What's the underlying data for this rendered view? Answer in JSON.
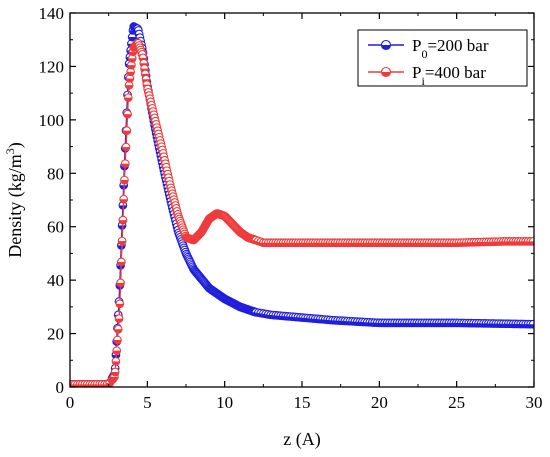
{
  "chart_data": {
    "type": "scatter",
    "xlabel": "z (A)",
    "ylabel": {
      "main": "Density (kg/m",
      "sup": "3",
      "end": ")"
    },
    "xlim": [
      0,
      30
    ],
    "ylim": [
      0,
      140
    ],
    "xticks": [
      0,
      5,
      10,
      15,
      20,
      25,
      30
    ],
    "yticks": [
      0,
      20,
      40,
      60,
      80,
      100,
      120,
      140
    ],
    "grid": false,
    "legend_position": "top-right",
    "series": [
      {
        "name": "P0=200 bar",
        "legend": {
          "prefix": "P",
          "sub": "0",
          "suffix": "=200 bar"
        },
        "color": "#1f1fdc",
        "marker": "half-filled-circle",
        "x": [
          0,
          2.5,
          2.9,
          3.2,
          3.5,
          3.8,
          4.1,
          4.4,
          4.7,
          5.0,
          5.5,
          6.0,
          6.5,
          7.0,
          7.5,
          8.0,
          9.0,
          10.0,
          11.0,
          12.0,
          13.0,
          15.0,
          17.0,
          20.0,
          25.0,
          30.0
        ],
        "y": [
          1,
          1,
          5,
          35,
          80,
          120,
          135,
          134,
          126,
          113,
          97,
          83,
          70,
          58,
          50,
          44,
          37,
          33,
          30,
          28,
          27,
          26,
          25,
          24,
          24,
          23.5
        ]
      },
      {
        "name": "Pi=400 bar",
        "legend": {
          "prefix": "P",
          "sub": "i",
          "suffix": "=400 bar"
        },
        "color": "#ee3b3b",
        "marker": "half-filled-circle",
        "x": [
          0,
          2.5,
          2.9,
          3.2,
          3.5,
          3.8,
          4.1,
          4.4,
          4.7,
          5.0,
          5.5,
          6.0,
          6.5,
          7.0,
          7.5,
          8.0,
          8.5,
          9.0,
          9.5,
          10.0,
          10.5,
          11.0,
          11.5,
          12.0,
          12.5,
          13.0,
          15.0,
          20.0,
          25.0,
          28.0,
          30.0
        ],
        "y": [
          1,
          1,
          4,
          28,
          75,
          112,
          127,
          129,
          124,
          112,
          100,
          88,
          75,
          64,
          56,
          55,
          58,
          63,
          65,
          64,
          61,
          58,
          56,
          55,
          54,
          54,
          54,
          54,
          54,
          54.5,
          54.5
        ]
      }
    ]
  }
}
